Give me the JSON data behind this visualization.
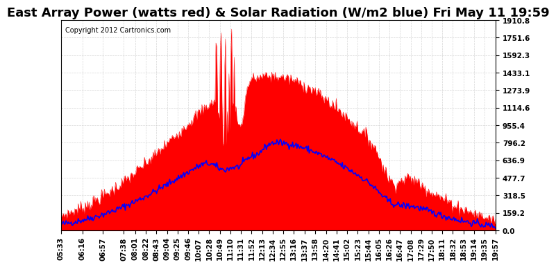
{
  "title": "East Array Power (watts red) & Solar Radiation (W/m2 blue) Fri May 11 19:59",
  "copyright": "Copyright 2012 Cartronics.com",
  "ymax": 1910.8,
  "yticks": [
    0.0,
    159.2,
    318.5,
    477.7,
    636.9,
    796.2,
    955.4,
    1114.6,
    1273.9,
    1433.1,
    1592.3,
    1751.6,
    1910.8
  ],
  "ytick_labels": [
    "0.0",
    "159.2",
    "318.5",
    "477.7",
    "636.9",
    "796.2",
    "955.4",
    "1114.6",
    "1273.9",
    "1433.1",
    "1592.3",
    "1751.6",
    "1910.8"
  ],
  "bg_color": "#ffffff",
  "plot_bg_color": "#ffffff",
  "grid_color": "#cccccc",
  "red_color": "#ff0000",
  "blue_color": "#0000ff",
  "title_fontsize": 13,
  "tick_fontsize": 7.5,
  "x_labels": [
    "05:33",
    "06:16",
    "06:57",
    "07:38",
    "08:01",
    "08:22",
    "08:43",
    "09:04",
    "09:25",
    "09:46",
    "10:07",
    "10:28",
    "10:49",
    "11:10",
    "11:31",
    "11:52",
    "12:13",
    "12:34",
    "12:55",
    "13:16",
    "13:37",
    "13:58",
    "14:20",
    "14:41",
    "15:02",
    "15:23",
    "15:44",
    "16:05",
    "16:26",
    "16:47",
    "17:08",
    "17:29",
    "17:50",
    "18:11",
    "18:32",
    "18:53",
    "19:14",
    "19:35",
    "19:57"
  ]
}
